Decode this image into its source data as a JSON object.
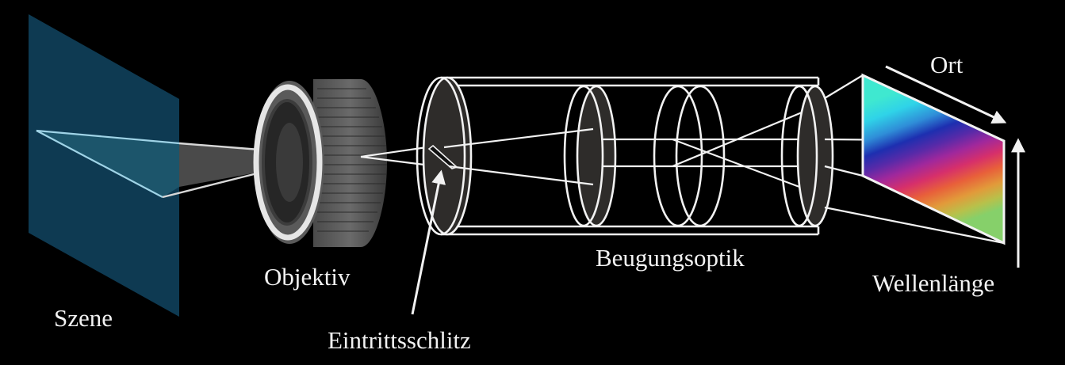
{
  "labels": {
    "scene": "Szene",
    "objective": "Objektiv",
    "entrance_slit": "Eintrittsschlitz",
    "diffraction_optics": "Beugungsoptik",
    "position": "Ort",
    "wavelength": "Wellenlänge"
  },
  "colors": {
    "background": "#000000",
    "scene_plane": "#0e3a52",
    "line": "#f2f2f2",
    "lens_dark": "#2e2c2a",
    "beam": "#9a9a9a"
  }
}
